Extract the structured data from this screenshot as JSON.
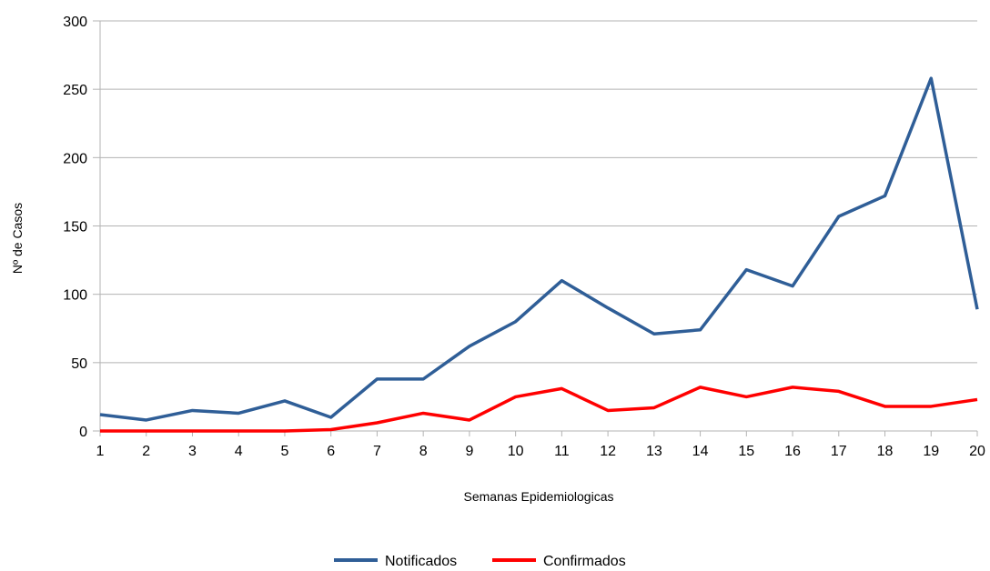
{
  "chart_data": {
    "type": "line",
    "title": "",
    "xlabel": "Semanas Epidemiologicas",
    "ylabel": "Nº de Casos",
    "x": [
      "1",
      "2",
      "3",
      "4",
      "5",
      "6",
      "7",
      "8",
      "9",
      "10",
      "11",
      "12",
      "13",
      "14",
      "15",
      "16",
      "17",
      "18",
      "19",
      "20"
    ],
    "ylim": [
      0,
      300
    ],
    "yticks": [
      "0",
      "50",
      "100",
      "150",
      "200",
      "250",
      "300"
    ],
    "grid": true,
    "legend_position": "bottom",
    "series": [
      {
        "name": "Notificados",
        "color": "#2f5e97",
        "values": [
          12,
          8,
          15,
          13,
          22,
          10,
          38,
          38,
          62,
          80,
          110,
          90,
          71,
          74,
          118,
          106,
          157,
          172,
          258,
          89
        ]
      },
      {
        "name": "Confirmados",
        "color": "#ff0000",
        "values": [
          0,
          0,
          0,
          0,
          0,
          1,
          6,
          13,
          8,
          25,
          31,
          15,
          17,
          32,
          25,
          32,
          29,
          18,
          18,
          23
        ]
      }
    ]
  }
}
